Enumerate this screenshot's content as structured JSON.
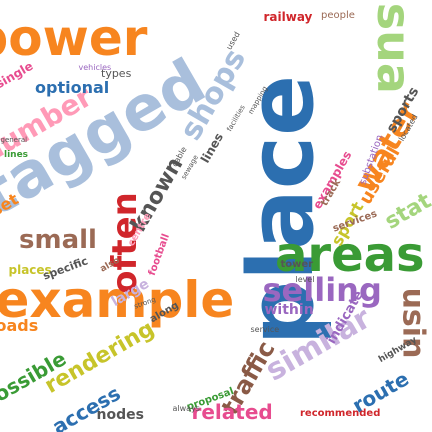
{
  "words": [
    {
      "text": "place",
      "color": "#2c6fb0"
    },
    {
      "text": "tagged",
      "color": "#a9bfdc"
    },
    {
      "text": "power",
      "color": "#f7851f"
    },
    {
      "text": "example",
      "color": "#f7851f"
    },
    {
      "text": "areas",
      "color": "#3a9b35"
    },
    {
      "text": "usua",
      "color": "#a4d57d"
    },
    {
      "text": "often",
      "color": "#d0262b"
    },
    {
      "text": "selling",
      "color": "#9a67c0"
    },
    {
      "text": "similar",
      "color": "#c8b2de"
    },
    {
      "text": "shops",
      "color": "#a9bfdc"
    },
    {
      "text": "water",
      "color": "#f7851f"
    },
    {
      "text": "number",
      "color": "#ff9ab7"
    },
    {
      "text": "rendering",
      "color": "#c7c42a"
    },
    {
      "text": "small",
      "color": "#9b6a55"
    },
    {
      "text": "known",
      "color": "#555555"
    },
    {
      "text": "traffic",
      "color": "#8a5a46"
    },
    {
      "text": "related",
      "color": "#e74c8f"
    },
    {
      "text": "usin",
      "color": "#9b6a55"
    },
    {
      "text": "optional",
      "color": "#2c6fb0"
    },
    {
      "text": "possible",
      "color": "#3a9b35"
    },
    {
      "text": "access",
      "color": "#2c6fb0"
    },
    {
      "text": "route",
      "color": "#2c6fb0"
    },
    {
      "text": "nodes",
      "color": "#555555"
    },
    {
      "text": "sport",
      "color": "#c7c42a"
    },
    {
      "text": "stat",
      "color": "#a4d57d"
    },
    {
      "text": "useful",
      "color": "#f7851f"
    },
    {
      "text": "large",
      "color": "#c8b2de"
    },
    {
      "text": "sports",
      "color": "#555555"
    },
    {
      "text": "lines",
      "color": "#555555"
    },
    {
      "text": "loads",
      "color": "#f7851f"
    },
    {
      "text": "tower",
      "color": "#555555"
    },
    {
      "text": "recommended",
      "color": "#d0262b"
    },
    {
      "text": "railway",
      "color": "#d0262b"
    },
    {
      "text": "people",
      "color": "#9b6a55"
    },
    {
      "text": "within",
      "color": "#9a67c0"
    },
    {
      "text": "places",
      "color": "#c7c42a"
    },
    {
      "text": "specific",
      "color": "#555555"
    },
    {
      "text": "indicate",
      "color": "#9a67c0"
    },
    {
      "text": "examples",
      "color": "#e74c8f"
    },
    {
      "text": "single",
      "color": "#e74c8f"
    },
    {
      "text": "types",
      "color": "#555555"
    },
    {
      "text": "services",
      "color": "#9b6a55"
    },
    {
      "text": "along",
      "color": "#555555"
    },
    {
      "text": "proposal",
      "color": "#3a9b35"
    },
    {
      "text": "vehicles",
      "color": "#9a67c0"
    },
    {
      "text": "centre",
      "color": "#ff9ab7"
    },
    {
      "text": "football",
      "color": "#e74c8f"
    },
    {
      "text": "highway",
      "color": "#555555"
    },
    {
      "text": "track",
      "color": "#9b6a55"
    },
    {
      "text": "substation",
      "color": "#9a67c0"
    },
    {
      "text": "level",
      "color": "#555555"
    },
    {
      "text": "general",
      "color": "#555555"
    },
    {
      "text": "always",
      "color": "#555555"
    },
    {
      "text": "service",
      "color": "#555555"
    },
    {
      "text": "located",
      "color": "#555555"
    },
    {
      "text": "facilities",
      "color": "#555555"
    },
    {
      "text": "mapping",
      "color": "#555555"
    },
    {
      "text": "cable",
      "color": "#555555"
    },
    {
      "text": "sewage",
      "color": "#555555"
    },
    {
      "text": "strong",
      "color": "#555555"
    },
    {
      "text": "used",
      "color": "#555555"
    },
    {
      "text": "lines",
      "color": "#3a9b35"
    },
    {
      "text": "also",
      "color": "#9b6a55"
    },
    {
      "text": "set",
      "color": "#f7851f"
    }
  ]
}
